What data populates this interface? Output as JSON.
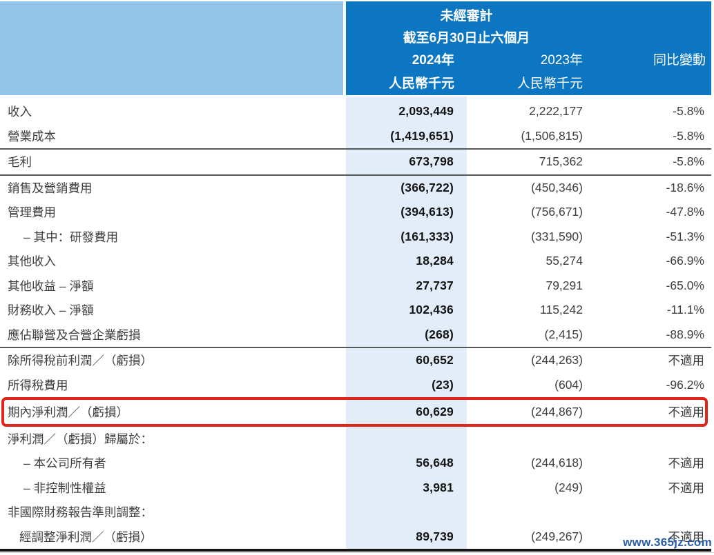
{
  "header": {
    "unaudited": "未經審計",
    "period": "截至6月30日止六個月",
    "col_2024": "2024年",
    "col_2023": "2023年",
    "col_change": "同比變動",
    "unit_2024": "人民幣千元",
    "unit_2023": "人民幣千元"
  },
  "colors": {
    "header_dark_blue": "#0d76c2",
    "header_light_blue": "#92c3e9",
    "column_2024_highlight": "#e3edf9",
    "highlight_box_red": "#e1251b",
    "divider_gray": "#55565a",
    "watermark_blue": "#2a5ea6"
  },
  "watermark": "www.365jz.com",
  "table": {
    "rows": [
      {
        "label": "收入",
        "y2024": "2,093,449",
        "y2023": "2,222,177",
        "change": "-5.8%"
      },
      {
        "label": "營業成本",
        "y2024": "(1,419,651)",
        "y2023": "(1,506,815)",
        "change": "-5.8%"
      },
      {
        "label": "毛利",
        "y2024": "673,798",
        "y2023": "715,362",
        "change": "-5.8%"
      },
      {
        "label": "銷售及營銷費用",
        "y2024": "(366,722)",
        "y2023": "(450,346)",
        "change": "-18.6%"
      },
      {
        "label": "管理費用",
        "y2024": "(394,613)",
        "y2023": "(756,671)",
        "change": "-47.8%"
      },
      {
        "label": "– 其中：研發費用",
        "y2024": "(161,333)",
        "y2023": "(331,590)",
        "change": "-51.3%"
      },
      {
        "label": "其他收入",
        "y2024": "18,284",
        "y2023": "55,274",
        "change": "-66.9%"
      },
      {
        "label": "其他收益 – 淨額",
        "y2024": "27,737",
        "y2023": "79,291",
        "change": "-65.0%"
      },
      {
        "label": "財務收入 – 淨額",
        "y2024": "102,436",
        "y2023": "115,242",
        "change": "-11.1%"
      },
      {
        "label": "應佔聯營及合營企業虧損",
        "y2024": "(268)",
        "y2023": "(2,415)",
        "change": "-88.9%"
      },
      {
        "label": "除所得稅前利潤／（虧損）",
        "y2024": "60,652",
        "y2023": "(244,263)",
        "change": "不適用"
      },
      {
        "label": "所得稅費用",
        "y2024": "(23)",
        "y2023": "(604)",
        "change": "-96.2%"
      },
      {
        "label": "期內淨利潤／（虧損）",
        "y2024": "60,629",
        "y2023": "(244,867)",
        "change": "不適用"
      },
      {
        "label": "淨利潤／（虧損）歸屬於：",
        "y2024": "",
        "y2023": "",
        "change": ""
      },
      {
        "label": "– 本公司所有者",
        "y2024": "56,648",
        "y2023": "(244,618)",
        "change": "不適用"
      },
      {
        "label": "– 非控制性權益",
        "y2024": "3,981",
        "y2023": "(249)",
        "change": "不適用"
      },
      {
        "label": "非國際財務報告準則調整：",
        "y2024": "",
        "y2023": "",
        "change": ""
      },
      {
        "label": "經調整淨利潤／（虧損）",
        "y2024": "89,739",
        "y2023": "(249,267)",
        "change": "不適用"
      }
    ]
  }
}
